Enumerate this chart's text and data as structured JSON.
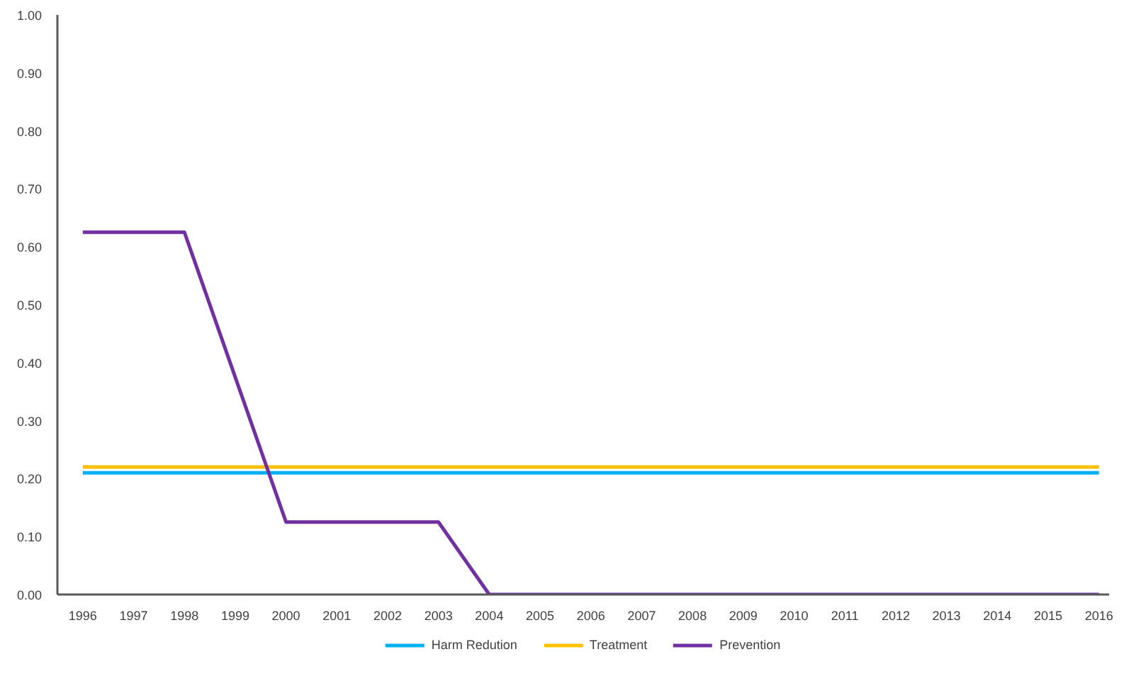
{
  "chart_data": {
    "type": "line",
    "categories": [
      "1996",
      "1997",
      "1998",
      "1999",
      "2000",
      "2001",
      "2002",
      "2003",
      "2004",
      "2005",
      "2006",
      "2007",
      "2008",
      "2009",
      "2010",
      "2011",
      "2012",
      "2013",
      "2014",
      "2015",
      "2016"
    ],
    "series": [
      {
        "name": "Harm Redution",
        "color": "#00b0f0",
        "values": [
          0.21,
          0.21,
          0.21,
          0.21,
          0.21,
          0.21,
          0.21,
          0.21,
          0.21,
          0.21,
          0.21,
          0.21,
          0.21,
          0.21,
          0.21,
          0.21,
          0.21,
          0.21,
          0.21,
          0.21,
          0.21
        ]
      },
      {
        "name": "Treatment",
        "color": "#ffc000",
        "values": [
          0.22,
          0.22,
          0.22,
          0.22,
          0.22,
          0.22,
          0.22,
          0.22,
          0.22,
          0.22,
          0.22,
          0.22,
          0.22,
          0.22,
          0.22,
          0.22,
          0.22,
          0.22,
          0.22,
          0.22,
          0.22
        ]
      },
      {
        "name": "Prevention",
        "color": "#7030a0",
        "values": [
          0.625,
          0.625,
          0.625,
          0.375,
          0.125,
          0.125,
          0.125,
          0.125,
          0,
          0,
          0,
          0,
          0,
          0,
          0,
          0,
          0,
          0,
          0,
          0,
          0
        ]
      }
    ],
    "ylim": [
      0,
      1
    ],
    "yticks": [
      {
        "value": 0,
        "label": "0.00"
      },
      {
        "value": 0.1,
        "label": "0.10"
      },
      {
        "value": 0.2,
        "label": "0.20"
      },
      {
        "value": 0.3,
        "label": "0.30"
      },
      {
        "value": 0.4,
        "label": "0.40"
      },
      {
        "value": 0.5,
        "label": "0.50"
      },
      {
        "value": 0.6,
        "label": "0.60"
      },
      {
        "value": 0.7,
        "label": "0.70"
      },
      {
        "value": 0.8,
        "label": "0.80"
      },
      {
        "value": 0.9,
        "label": "0.90"
      },
      {
        "value": 1,
        "label": "1.00"
      }
    ],
    "grid": false,
    "legend": "bottom",
    "marker": "none",
    "line_style": "solid"
  }
}
